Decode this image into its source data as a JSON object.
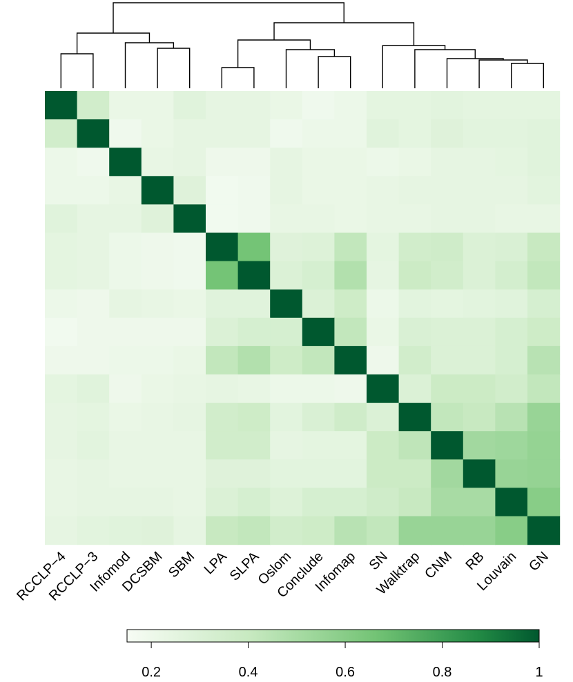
{
  "chart_data": {
    "type": "heatmap",
    "title": "",
    "xlabel": "",
    "ylabel": "",
    "labels": [
      "RCCLP−4",
      "RCCLP−3",
      "Infomod",
      "DCSBM",
      "SBM",
      "LPA",
      "SLPA",
      "Oslom",
      "Conclude",
      "Infomap",
      "SN",
      "Walktrap",
      "CNM",
      "RB",
      "Louvain",
      "GN"
    ],
    "matrix": [
      [
        1,
        0.35,
        0.22,
        0.22,
        0.27,
        0.24,
        0.24,
        0.22,
        0.19,
        0.21,
        0.25,
        0.25,
        0.26,
        0.25,
        0.25,
        0.25
      ],
      [
        0.35,
        1,
        0.19,
        0.22,
        0.24,
        0.24,
        0.24,
        0.19,
        0.21,
        0.21,
        0.27,
        0.25,
        0.28,
        0.26,
        0.26,
        0.27
      ],
      [
        0.21,
        0.19,
        1,
        0.23,
        0.24,
        0.2,
        0.2,
        0.24,
        0.22,
        0.22,
        0.21,
        0.22,
        0.24,
        0.24,
        0.25,
        0.27
      ],
      [
        0.21,
        0.21,
        0.23,
        1,
        0.28,
        0.18,
        0.19,
        0.24,
        0.22,
        0.22,
        0.23,
        0.24,
        0.24,
        0.24,
        0.24,
        0.26
      ],
      [
        0.27,
        0.24,
        0.24,
        0.28,
        1,
        0.18,
        0.19,
        0.23,
        0.23,
        0.22,
        0.23,
        0.23,
        0.24,
        0.24,
        0.23,
        0.23
      ],
      [
        0.25,
        0.24,
        0.21,
        0.2,
        0.19,
        1,
        0.66,
        0.28,
        0.29,
        0.42,
        0.25,
        0.35,
        0.36,
        0.3,
        0.31,
        0.4
      ],
      [
        0.25,
        0.24,
        0.21,
        0.2,
        0.19,
        0.66,
        1,
        0.3,
        0.33,
        0.47,
        0.24,
        0.38,
        0.35,
        0.3,
        0.34,
        0.42
      ],
      [
        0.21,
        0.2,
        0.24,
        0.23,
        0.22,
        0.27,
        0.27,
        1,
        0.3,
        0.37,
        0.21,
        0.26,
        0.25,
        0.26,
        0.27,
        0.33
      ],
      [
        0.18,
        0.2,
        0.2,
        0.2,
        0.2,
        0.3,
        0.33,
        0.33,
        1,
        0.42,
        0.22,
        0.31,
        0.3,
        0.3,
        0.33,
        0.37
      ],
      [
        0.2,
        0.2,
        0.21,
        0.21,
        0.22,
        0.42,
        0.47,
        0.37,
        0.42,
        1,
        0.2,
        0.35,
        0.3,
        0.3,
        0.33,
        0.45
      ],
      [
        0.25,
        0.27,
        0.2,
        0.22,
        0.23,
        0.24,
        0.23,
        0.21,
        0.21,
        0.2,
        1,
        0.3,
        0.38,
        0.38,
        0.35,
        0.42
      ],
      [
        0.24,
        0.25,
        0.22,
        0.23,
        0.24,
        0.35,
        0.37,
        0.26,
        0.31,
        0.36,
        0.3,
        1,
        0.42,
        0.4,
        0.45,
        0.55
      ],
      [
        0.24,
        0.26,
        0.23,
        0.23,
        0.23,
        0.35,
        0.35,
        0.24,
        0.25,
        0.25,
        0.38,
        0.43,
        1,
        0.52,
        0.53,
        0.56
      ],
      [
        0.23,
        0.24,
        0.23,
        0.23,
        0.23,
        0.28,
        0.28,
        0.26,
        0.26,
        0.26,
        0.38,
        0.38,
        0.52,
        1,
        0.55,
        0.56
      ],
      [
        0.23,
        0.24,
        0.24,
        0.24,
        0.23,
        0.3,
        0.33,
        0.29,
        0.33,
        0.33,
        0.36,
        0.4,
        0.5,
        0.5,
        1,
        0.6
      ],
      [
        0.24,
        0.26,
        0.27,
        0.28,
        0.24,
        0.4,
        0.42,
        0.35,
        0.37,
        0.45,
        0.42,
        0.55,
        0.55,
        0.55,
        0.6,
        1
      ]
    ],
    "colorbar": {
      "min": 0.15,
      "max": 1,
      "ticks": [
        0.2,
        0.4,
        0.6,
        0.8,
        1
      ],
      "tick_labels": [
        "0.2",
        "0.4",
        "0.6",
        "0.8",
        "1"
      ]
    },
    "colors": {
      "low": "#f7fcf5",
      "mid_light": "#c7e9c0",
      "mid": "#74c476",
      "mid_dark": "#238b45",
      "high": "#00582f"
    },
    "dendrogram": true,
    "legend_placement": "bottom"
  }
}
